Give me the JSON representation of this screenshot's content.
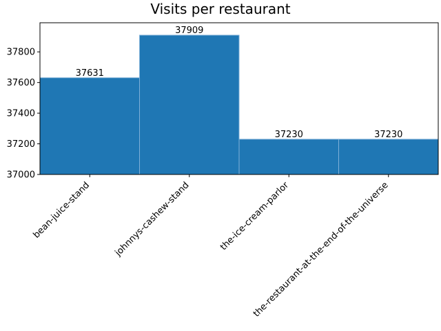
{
  "chart_data": {
    "type": "bar",
    "title": "Visits per restaurant",
    "xlabel": "",
    "ylabel": "",
    "categories": [
      "bean-juice-stand",
      "johnnys-cashew-stand",
      "the-ice-cream-parlor",
      "the-restaurant-at-the-end-of-the-universe"
    ],
    "values": [
      37631,
      37909,
      37230,
      37230
    ],
    "value_labels": [
      "37631",
      "37909",
      "37230",
      "37230"
    ],
    "ylim": [
      37000,
      37990
    ],
    "yticks": [
      37000,
      37200,
      37400,
      37600,
      37800
    ],
    "ytick_labels": [
      "37000",
      "37200",
      "37400",
      "37600",
      "37800"
    ],
    "grid": false,
    "legend": "none",
    "colors": {
      "bar": "#1f77b4",
      "bar_edge": "#7fb0d8",
      "axis": "#000000"
    }
  }
}
